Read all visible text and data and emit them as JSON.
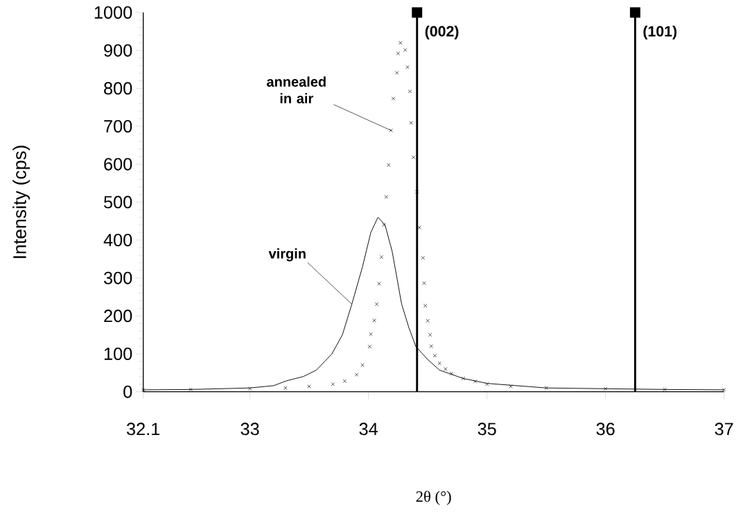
{
  "chart_data": {
    "type": "line",
    "xlabel": "2θ (°)",
    "ylabel": "Intensity (cps)",
    "xlim": [
      32.1,
      37
    ],
    "ylim": [
      0,
      1000
    ],
    "xticks": [
      32.1,
      33,
      34,
      35,
      36,
      37
    ],
    "yticks": [
      0,
      100,
      200,
      300,
      400,
      500,
      600,
      700,
      800,
      900,
      1000
    ],
    "series": [
      {
        "color": "#000000",
        "marker": "none",
        "line_style": "solid",
        "x": [
          32.1,
          32.5,
          33.0,
          33.2,
          33.31,
          33.45,
          33.56,
          33.69,
          33.78,
          33.86,
          33.95,
          34.02,
          34.08,
          34.14,
          34.2,
          34.28,
          34.34,
          34.4,
          34.5,
          34.6,
          34.8,
          35.0,
          35.5,
          36,
          36.5,
          37
        ],
        "values": [
          5,
          6,
          10,
          16,
          29,
          40,
          57,
          99,
          150,
          231,
          330,
          420,
          460,
          440,
          370,
          231,
          170,
          119,
          85,
          57,
          35,
          22,
          10,
          8,
          6,
          5
        ]
      },
      {
        "type": "scatter",
        "color": "#000000",
        "marker": "cross",
        "x": [
          32.1,
          32.5,
          33.0,
          33.3,
          33.5,
          33.7,
          33.8,
          33.9,
          33.95,
          34.01,
          34.02,
          34.05,
          34.07,
          34.09,
          34.11,
          34.13,
          34.15,
          34.17,
          34.19,
          34.21,
          34.24,
          34.25,
          34.27,
          34.31,
          34.33,
          34.35,
          34.36,
          34.38,
          34.41,
          34.43,
          34.46,
          34.47,
          34.48,
          34.5,
          34.52,
          34.53,
          34.56,
          34.6,
          34.65,
          34.7,
          34.8,
          34.9,
          35.0,
          35.2,
          35.5,
          36,
          36.5,
          37
        ],
        "values": [
          5,
          6,
          8,
          10,
          14,
          20,
          28,
          45,
          70,
          119,
          152,
          188,
          231,
          285,
          355,
          440,
          514,
          598,
          689,
          773,
          841,
          892,
          920,
          901,
          856,
          792,
          709,
          618,
          527,
          433,
          353,
          286,
          227,
          187,
          150,
          120,
          95,
          75,
          60,
          48,
          35,
          27,
          20,
          14,
          10,
          8,
          6,
          5
        ]
      },
      {
        "type": "lollipop",
        "color": "#000000",
        "marker": "square",
        "x": [
          34.41,
          36.25
        ],
        "values": [
          1000,
          1000
        ]
      }
    ],
    "annotations": [
      {
        "text": "(002)",
        "x": 34.41,
        "y": 1000
      },
      {
        "text": "(101)",
        "x": 36.25,
        "y": 1000
      },
      {
        "text": "annealed in air",
        "x": 34.19,
        "y": 689
      },
      {
        "text": "virgin",
        "x": 33.86,
        "y": 231
      }
    ]
  }
}
